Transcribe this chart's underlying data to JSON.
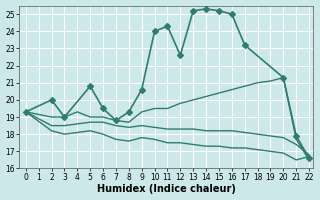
{
  "xlabel": "Humidex (Indice chaleur)",
  "ylabel": "",
  "background_color": "#cce8e8",
  "grid_color": "#ffffff",
  "line_color": "#2e7d6e",
  "xlim": [
    0,
    22
  ],
  "ylim": [
    16,
    25.5
  ],
  "yticks": [
    16,
    17,
    18,
    19,
    20,
    21,
    22,
    23,
    24,
    25
  ],
  "xticks": [
    0,
    1,
    2,
    3,
    4,
    5,
    6,
    7,
    8,
    9,
    10,
    11,
    12,
    13,
    14,
    15,
    16,
    17,
    18,
    19,
    20,
    21,
    22
  ],
  "lines": [
    {
      "x": [
        0,
        2,
        3,
        5,
        6,
        7,
        8,
        9,
        10,
        11,
        12,
        13,
        14,
        15,
        16,
        17,
        20,
        21,
        22
      ],
      "y": [
        19.3,
        20.0,
        19.0,
        20.8,
        19.5,
        18.8,
        19.3,
        20.6,
        24.0,
        24.3,
        22.6,
        25.2,
        25.3,
        25.2,
        25.0,
        23.2,
        21.3,
        17.9,
        16.6
      ],
      "marker": "D",
      "markersize": 3,
      "linewidth": 1.2
    },
    {
      "x": [
        0,
        2,
        3,
        4,
        5,
        6,
        7,
        8,
        9,
        10,
        11,
        12,
        13,
        14,
        15,
        16,
        17,
        18,
        19,
        20,
        21,
        22
      ],
      "y": [
        19.3,
        19.0,
        19.0,
        19.3,
        19.0,
        19.0,
        18.8,
        18.7,
        19.3,
        19.5,
        19.5,
        19.8,
        20.0,
        20.2,
        20.4,
        20.6,
        20.8,
        21.0,
        21.1,
        21.3,
        17.7,
        16.5
      ],
      "marker": null,
      "markersize": 0,
      "linewidth": 1.0
    },
    {
      "x": [
        0,
        2,
        3,
        4,
        5,
        6,
        7,
        8,
        9,
        10,
        11,
        12,
        13,
        14,
        15,
        16,
        17,
        18,
        19,
        20,
        21,
        22
      ],
      "y": [
        19.3,
        18.5,
        18.5,
        18.6,
        18.7,
        18.7,
        18.5,
        18.4,
        18.5,
        18.4,
        18.3,
        18.3,
        18.3,
        18.2,
        18.2,
        18.2,
        18.1,
        18.0,
        17.9,
        17.8,
        17.4,
        16.8
      ],
      "marker": null,
      "markersize": 0,
      "linewidth": 1.0
    },
    {
      "x": [
        0,
        2,
        3,
        4,
        5,
        6,
        7,
        8,
        9,
        10,
        11,
        12,
        13,
        14,
        15,
        16,
        17,
        18,
        19,
        20,
        21,
        22
      ],
      "y": [
        19.3,
        18.2,
        18.0,
        18.1,
        18.2,
        18.0,
        17.7,
        17.6,
        17.8,
        17.7,
        17.5,
        17.5,
        17.4,
        17.3,
        17.3,
        17.2,
        17.2,
        17.1,
        17.0,
        16.9,
        16.5,
        16.7
      ],
      "marker": null,
      "markersize": 0,
      "linewidth": 1.0
    }
  ]
}
